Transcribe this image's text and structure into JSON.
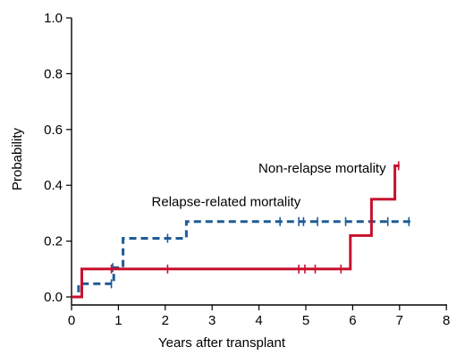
{
  "chart_data": {
    "type": "line",
    "xlabel": "Years after transplant",
    "ylabel": "Probability",
    "xlim": [
      0,
      8
    ],
    "ylim": [
      0,
      1
    ],
    "x_ticks": [
      "0",
      "1",
      "2",
      "3",
      "4",
      "5",
      "6",
      "7",
      "8"
    ],
    "y_ticks": [
      "0.0",
      "0.2",
      "0.4",
      "0.6",
      "0.8",
      "1.0"
    ],
    "grid": false,
    "legend": "none",
    "series": [
      {
        "name": "Relapse-related mortality",
        "color": "#1f5b96",
        "style": "dashed",
        "steps": [
          {
            "x": 0,
            "y": 0.0
          },
          {
            "x": 0.15,
            "y": 0.0
          },
          {
            "x": 0.15,
            "y": 0.047
          },
          {
            "x": 0.9,
            "y": 0.047
          },
          {
            "x": 0.9,
            "y": 0.105
          },
          {
            "x": 1.1,
            "y": 0.105
          },
          {
            "x": 1.1,
            "y": 0.21
          },
          {
            "x": 2.45,
            "y": 0.21
          },
          {
            "x": 2.45,
            "y": 0.27
          },
          {
            "x": 7.3,
            "y": 0.27
          }
        ],
        "censor": [
          {
            "x": 0.85,
            "y": 0.047
          },
          {
            "x": 0.88,
            "y": 0.105
          },
          {
            "x": 2.05,
            "y": 0.21
          },
          {
            "x": 4.45,
            "y": 0.27
          },
          {
            "x": 4.85,
            "y": 0.27
          },
          {
            "x": 4.95,
            "y": 0.27
          },
          {
            "x": 5.25,
            "y": 0.27
          },
          {
            "x": 5.85,
            "y": 0.27
          },
          {
            "x": 6.75,
            "y": 0.27
          },
          {
            "x": 7.2,
            "y": 0.27
          }
        ]
      },
      {
        "name": "Non-relapse mortality",
        "color": "#c8102e",
        "style": "solid",
        "steps": [
          {
            "x": 0,
            "y": 0.0
          },
          {
            "x": 0.22,
            "y": 0.0
          },
          {
            "x": 0.22,
            "y": 0.1
          },
          {
            "x": 5.95,
            "y": 0.1
          },
          {
            "x": 5.95,
            "y": 0.22
          },
          {
            "x": 6.4,
            "y": 0.22
          },
          {
            "x": 6.4,
            "y": 0.35
          },
          {
            "x": 6.9,
            "y": 0.35
          },
          {
            "x": 6.9,
            "y": 0.47
          },
          {
            "x": 7.0,
            "y": 0.47
          }
        ],
        "censor": [
          {
            "x": 0.85,
            "y": 0.1
          },
          {
            "x": 2.05,
            "y": 0.1
          },
          {
            "x": 4.85,
            "y": 0.1
          },
          {
            "x": 4.98,
            "y": 0.1
          },
          {
            "x": 5.2,
            "y": 0.1
          },
          {
            "x": 5.75,
            "y": 0.1
          },
          {
            "x": 6.98,
            "y": 0.47
          }
        ]
      }
    ],
    "annotations": [
      {
        "text": "Non-relapse mortality",
        "series": 1,
        "x": 5.35,
        "y": 0.445
      },
      {
        "text": "Relapse-related mortality",
        "series": 0,
        "x": 3.3,
        "y": 0.325
      }
    ]
  }
}
